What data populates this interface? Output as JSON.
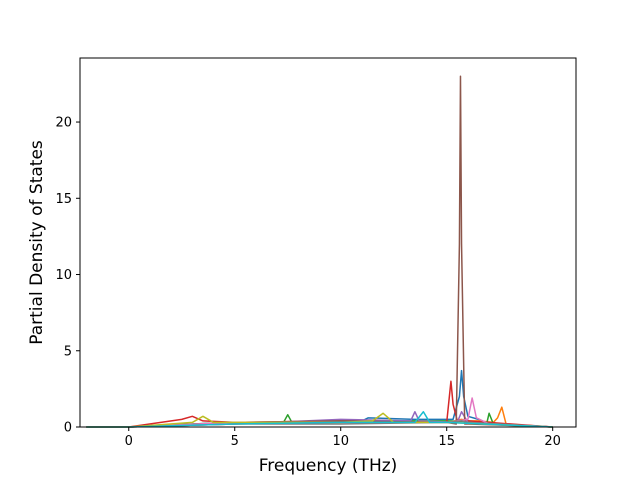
{
  "chart_data": {
    "type": "line",
    "title": "",
    "xlabel": "Frequency (THz)",
    "ylabel": "Partial Density of States",
    "xlim": [
      -2.3,
      21.1
    ],
    "ylim": [
      0,
      24.2
    ],
    "xticks": [
      0,
      5,
      10,
      15,
      20
    ],
    "xtick_labels": [
      "0",
      "5",
      "10",
      "15",
      "20"
    ],
    "yticks": [
      0,
      5,
      10,
      15,
      20
    ],
    "ytick_labels": [
      "0",
      "5",
      "10",
      "15",
      "20"
    ],
    "grid": false,
    "legend": "none",
    "colors": [
      "#1f77b4",
      "#ff7f0e",
      "#2ca02c",
      "#d62728",
      "#9467bd",
      "#8c564b",
      "#e377c2",
      "#7f7f7f",
      "#bcbd22",
      "#17becf"
    ],
    "series": [
      {
        "color": "#1f77b4",
        "x": [
          -2.0,
          0.0,
          3.0,
          5.0,
          8.0,
          11.0,
          11.3,
          13.5,
          15.3,
          15.6,
          15.7,
          15.8,
          16.0,
          16.5,
          17.0,
          20.0
        ],
        "y": [
          0,
          0,
          0.2,
          0.3,
          0.3,
          0.4,
          0.6,
          0.5,
          0.5,
          2.0,
          3.7,
          2.0,
          0.7,
          0.5,
          0.2,
          0
        ]
      },
      {
        "color": "#ff7f0e",
        "x": [
          -2.0,
          0.0,
          5.0,
          10.0,
          15.0,
          15.7,
          16.0,
          16.5,
          17.2,
          17.4,
          17.6,
          17.8,
          20.0
        ],
        "y": [
          0,
          0,
          0.2,
          0.3,
          0.3,
          0.5,
          0.4,
          0.4,
          0.3,
          0.6,
          1.3,
          0.2,
          0
        ]
      },
      {
        "color": "#2ca02c",
        "x": [
          -2.0,
          0.0,
          3.0,
          5.0,
          7.3,
          7.5,
          7.7,
          10.0,
          15.0,
          16.9,
          17.0,
          17.2,
          20.0
        ],
        "y": [
          0,
          0,
          0.2,
          0.3,
          0.3,
          0.8,
          0.3,
          0.4,
          0.4,
          0.3,
          0.9,
          0.2,
          0
        ]
      },
      {
        "color": "#d62728",
        "x": [
          -2.0,
          0.0,
          2.5,
          3.0,
          3.5,
          5.0,
          10.0,
          15.0,
          15.2,
          15.3,
          15.5,
          16.0,
          20.0
        ],
        "y": [
          0,
          0,
          0.5,
          0.7,
          0.4,
          0.3,
          0.4,
          0.3,
          3.0,
          1.5,
          0.4,
          0.4,
          0
        ]
      },
      {
        "color": "#9467bd",
        "x": [
          -2.0,
          0.0,
          5.0,
          10.0,
          13.3,
          13.5,
          13.7,
          15.5,
          15.7,
          16.0,
          20.0
        ],
        "y": [
          0,
          0,
          0.2,
          0.5,
          0.4,
          1.0,
          0.4,
          0.3,
          1.0,
          0.3,
          0
        ]
      },
      {
        "color": "#8c564b",
        "x": [
          -2.0,
          0.0,
          5.0,
          10.0,
          15.0,
          15.45,
          15.6,
          15.65,
          15.7,
          15.85,
          16.0,
          20.0
        ],
        "y": [
          0,
          0,
          0.3,
          0.4,
          0.3,
          0.2,
          12.0,
          23.0,
          12.0,
          0.2,
          0.2,
          0
        ]
      },
      {
        "color": "#e377c2",
        "x": [
          -2.0,
          0.0,
          5.0,
          10.0,
          15.0,
          16.0,
          16.2,
          16.4,
          17.0,
          20.0
        ],
        "y": [
          0,
          0,
          0.3,
          0.3,
          0.3,
          0.5,
          1.9,
          0.6,
          0.2,
          0
        ]
      },
      {
        "color": "#7f7f7f",
        "x": [
          -2.0,
          0.0,
          5.0,
          10.0,
          15.0,
          15.7,
          16.0,
          20.0
        ],
        "y": [
          0,
          0,
          0.2,
          0.2,
          0.3,
          0.4,
          0.3,
          0
        ]
      },
      {
        "color": "#bcbd22",
        "x": [
          -2.0,
          0.0,
          3.0,
          3.5,
          4.0,
          5.0,
          10.0,
          11.5,
          12.0,
          12.5,
          15.0,
          20.0
        ],
        "y": [
          0,
          0,
          0.3,
          0.7,
          0.3,
          0.3,
          0.3,
          0.4,
          0.9,
          0.3,
          0.3,
          0
        ]
      },
      {
        "color": "#17becf",
        "x": [
          -2.0,
          0.0,
          5.0,
          10.0,
          13.5,
          13.9,
          14.2,
          15.0,
          20.0
        ],
        "y": [
          0,
          0,
          0.2,
          0.3,
          0.3,
          1.0,
          0.3,
          0.3,
          0
        ]
      }
    ]
  }
}
